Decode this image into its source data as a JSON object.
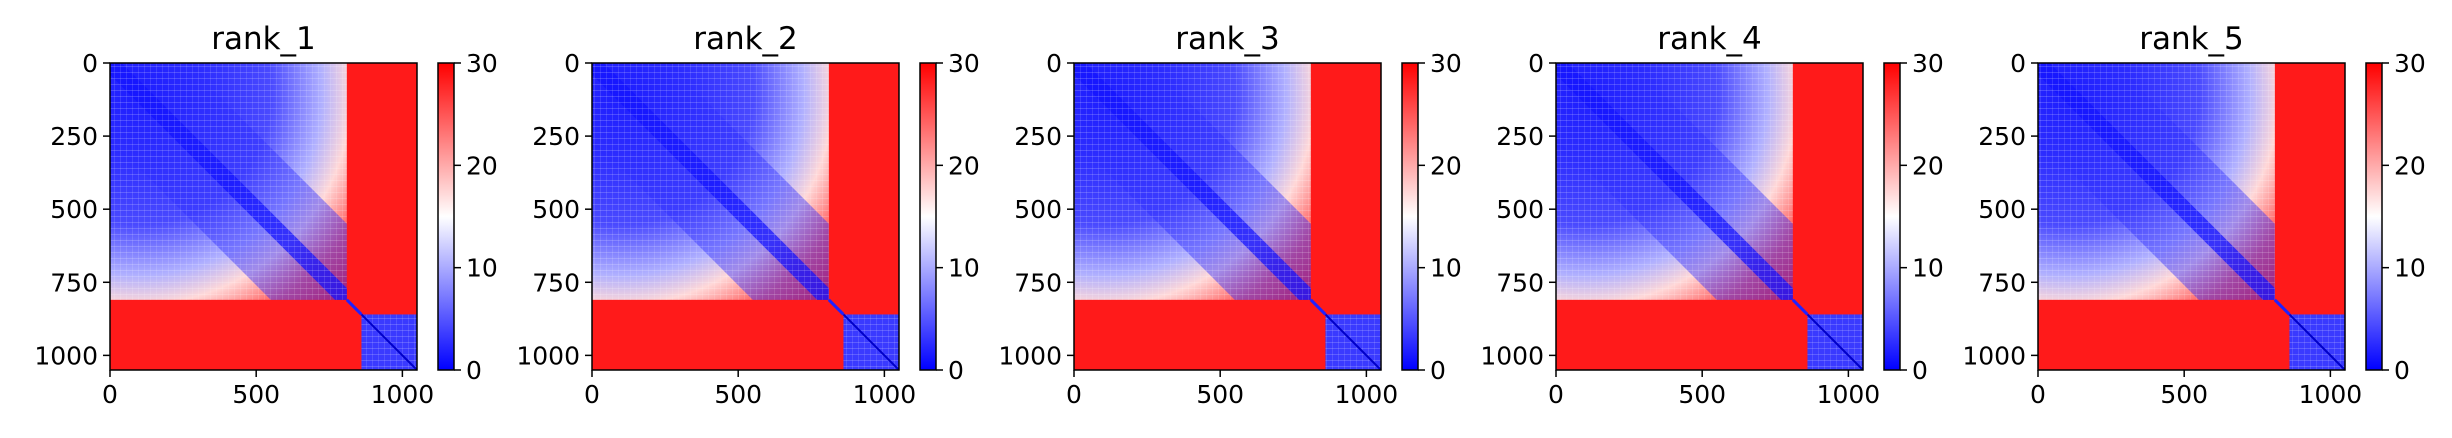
{
  "chart_data": [
    {
      "type": "heatmap",
      "title": "rank_1",
      "n": 1050,
      "block_boundary": 810,
      "diag_gap": [
        810,
        860
      ],
      "colorbar": {
        "min": 0,
        "max": 30,
        "ticks": [
          "0",
          "10",
          "20",
          "30"
        ],
        "cmap": "bwr"
      },
      "xticks": [
        "0",
        "500",
        "1000"
      ],
      "xtick_values": [
        0,
        500,
        1000
      ],
      "yticks": [
        "0",
        "250",
        "500",
        "750",
        "1000"
      ],
      "ytick_values": [
        0,
        250,
        500,
        750,
        1000
      ],
      "xlim": [
        0,
        1050
      ],
      "ylim": [
        1050,
        0
      ]
    },
    {
      "type": "heatmap",
      "title": "rank_2",
      "n": 1050,
      "block_boundary": 810,
      "diag_gap": [
        810,
        860
      ],
      "colorbar": {
        "min": 0,
        "max": 30,
        "ticks": [
          "0",
          "10",
          "20",
          "30"
        ],
        "cmap": "bwr"
      },
      "xticks": [
        "0",
        "500",
        "1000"
      ],
      "xtick_values": [
        0,
        500,
        1000
      ],
      "yticks": [
        "0",
        "250",
        "500",
        "750",
        "1000"
      ],
      "ytick_values": [
        0,
        250,
        500,
        750,
        1000
      ],
      "xlim": [
        0,
        1050
      ],
      "ylim": [
        1050,
        0
      ]
    },
    {
      "type": "heatmap",
      "title": "rank_3",
      "n": 1050,
      "block_boundary": 810,
      "diag_gap": [
        810,
        860
      ],
      "colorbar": {
        "min": 0,
        "max": 30,
        "ticks": [
          "0",
          "10",
          "20",
          "30"
        ],
        "cmap": "bwr"
      },
      "xticks": [
        "0",
        "500",
        "1000"
      ],
      "xtick_values": [
        0,
        500,
        1000
      ],
      "yticks": [
        "0",
        "250",
        "500",
        "750",
        "1000"
      ],
      "ytick_values": [
        0,
        250,
        500,
        750,
        1000
      ],
      "xlim": [
        0,
        1050
      ],
      "ylim": [
        1050,
        0
      ]
    },
    {
      "type": "heatmap",
      "title": "rank_4",
      "n": 1050,
      "block_boundary": 810,
      "diag_gap": [
        810,
        860
      ],
      "colorbar": {
        "min": 0,
        "max": 30,
        "ticks": [
          "0",
          "10",
          "20",
          "30"
        ],
        "cmap": "bwr"
      },
      "xticks": [
        "0",
        "500",
        "1000"
      ],
      "xtick_values": [
        0,
        500,
        1000
      ],
      "yticks": [
        "0",
        "250",
        "500",
        "750",
        "1000"
      ],
      "ytick_values": [
        0,
        250,
        500,
        750,
        1000
      ],
      "xlim": [
        0,
        1050
      ],
      "ylim": [
        1050,
        0
      ]
    },
    {
      "type": "heatmap",
      "title": "rank_5",
      "n": 1050,
      "block_boundary": 810,
      "diag_gap": [
        810,
        860
      ],
      "colorbar": {
        "min": 0,
        "max": 30,
        "ticks": [
          "0",
          "10",
          "20",
          "30"
        ],
        "cmap": "bwr"
      },
      "xticks": [
        "0",
        "500",
        "1000"
      ],
      "xtick_values": [
        0,
        500,
        1000
      ],
      "yticks": [
        "0",
        "250",
        "500",
        "750",
        "1000"
      ],
      "ytick_values": [
        0,
        250,
        500,
        750,
        1000
      ],
      "xlim": [
        0,
        1050
      ],
      "ylim": [
        1050,
        0
      ]
    }
  ],
  "colors": {
    "low": "#0000ff",
    "mid": "#ffffff",
    "high": "#ff0000",
    "axis": "#000000"
  }
}
